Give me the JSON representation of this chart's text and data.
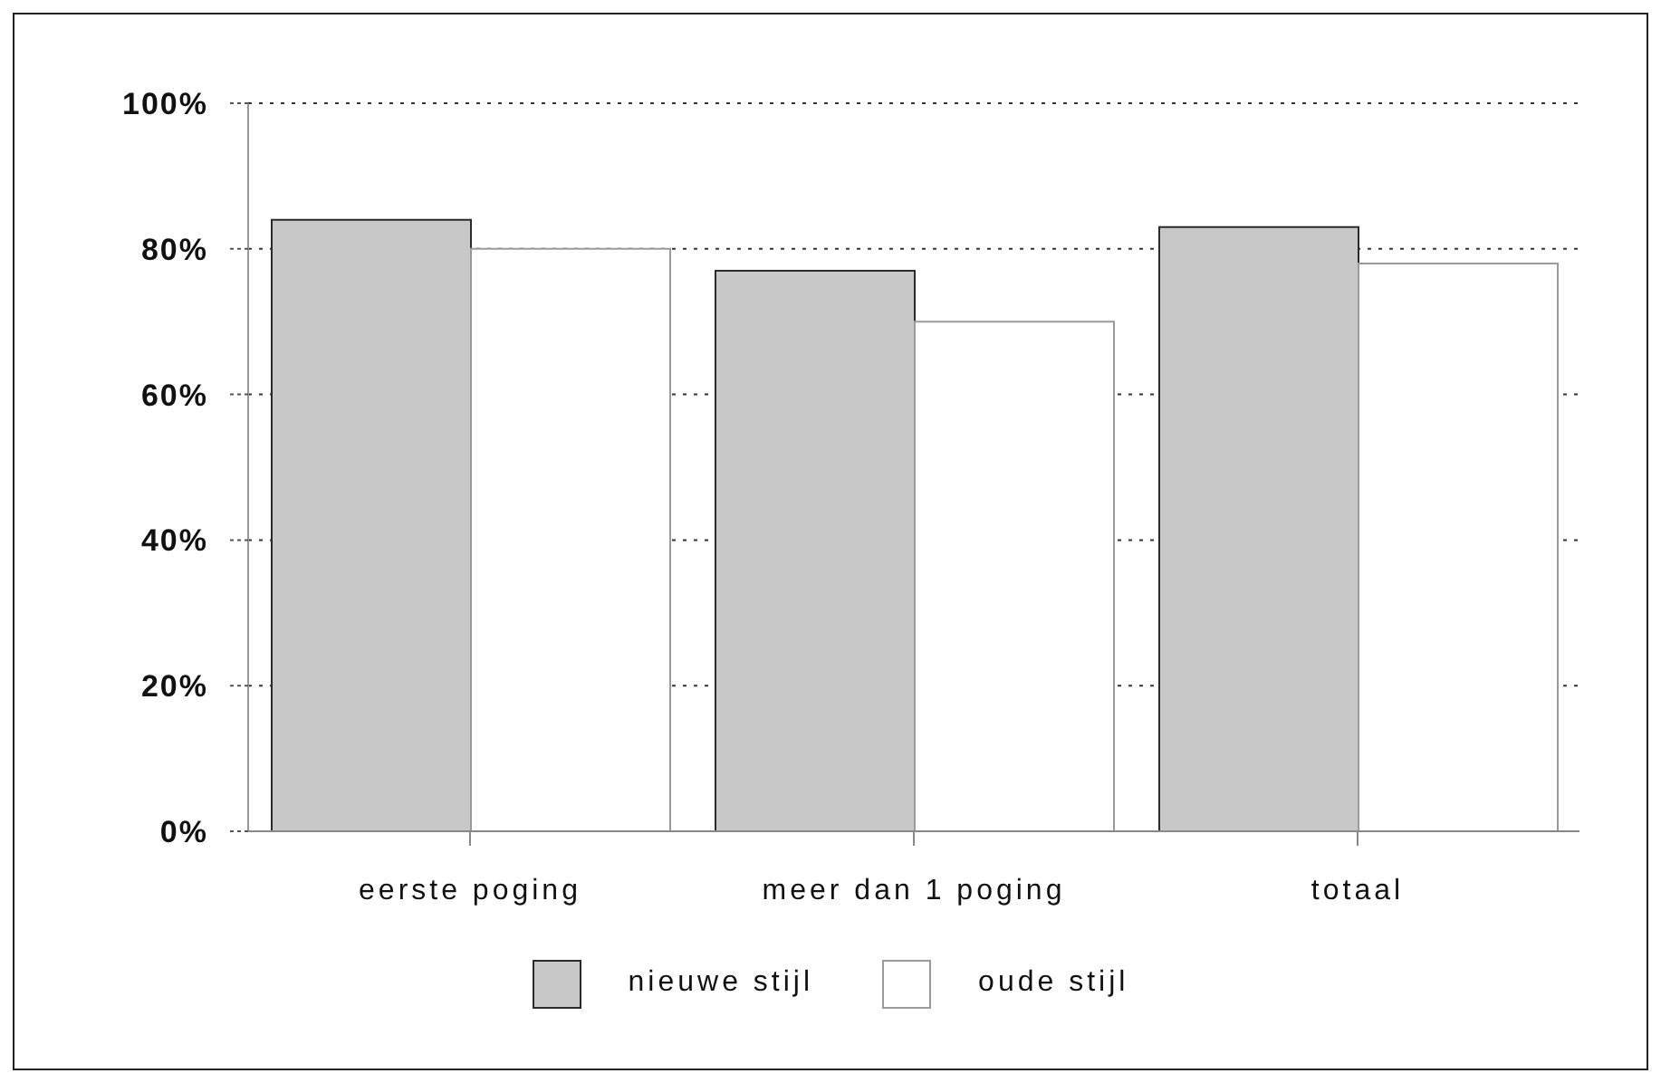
{
  "chart_data": {
    "type": "bar",
    "categories": [
      "eerste poging",
      "meer dan 1 poging",
      "totaal"
    ],
    "series": [
      {
        "name": "nieuwe stijl",
        "color": "#c8c8c8",
        "values": [
          84,
          77,
          83
        ]
      },
      {
        "name": "oude stijl",
        "color": "#ffffff",
        "values": [
          80,
          70,
          78
        ]
      }
    ],
    "ylim": [
      0,
      100
    ],
    "yticks": [
      {
        "value": 0,
        "label": "0%"
      },
      {
        "value": 20,
        "label": "20%"
      },
      {
        "value": 40,
        "label": "40%"
      },
      {
        "value": 60,
        "label": "60%"
      },
      {
        "value": 80,
        "label": "80%"
      },
      {
        "value": 100,
        "label": "100%"
      }
    ],
    "grid": "y",
    "legend": "bottom"
  }
}
